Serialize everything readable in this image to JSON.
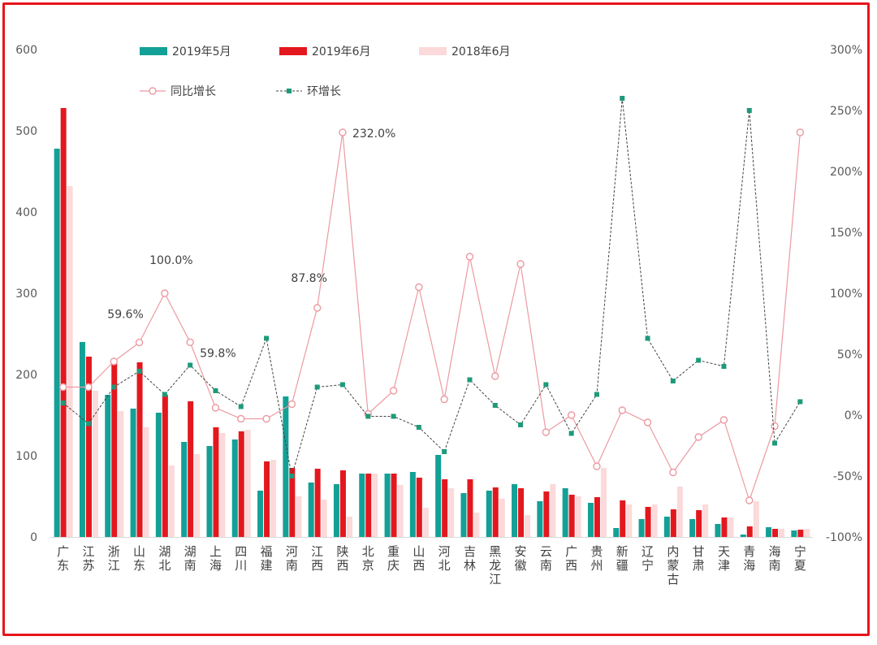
{
  "chart_data": {
    "type": "bar",
    "categories": [
      "广东",
      "江苏",
      "浙江",
      "山东",
      "湖北",
      "湖南",
      "上海",
      "四川",
      "福建",
      "河南",
      "江西",
      "陕西",
      "北京",
      "重庆",
      "山西",
      "河北",
      "吉林",
      "黑龙江",
      "安徽",
      "云南",
      "广西",
      "贵州",
      "新疆",
      "辽宁",
      "内蒙古",
      "甘肃",
      "天津",
      "青海",
      "海南",
      "宁夏"
    ],
    "y_left": {
      "ticks": [
        "0",
        "100",
        "200",
        "300",
        "400",
        "500",
        "600"
      ],
      "ylim": [
        0,
        600
      ]
    },
    "y_right": {
      "ticks": [
        "-100%",
        "-50%",
        "0%",
        "50%",
        "100%",
        "150%",
        "200%",
        "250%",
        "300%"
      ],
      "ylim": [
        -100,
        300
      ]
    },
    "series": [
      {
        "name": "2019年5月",
        "kind": "bar",
        "color": "#13a096",
        "values": [
          478,
          240,
          175,
          158,
          153,
          117,
          112,
          120,
          57,
          173,
          67,
          65,
          78,
          78,
          80,
          101,
          54,
          57,
          65,
          44,
          60,
          42,
          11,
          22,
          25,
          22,
          16,
          3,
          12,
          8
        ]
      },
      {
        "name": "2019年6月",
        "kind": "bar",
        "color": "#e3181e",
        "values": [
          528,
          222,
          215,
          215,
          175,
          167,
          135,
          130,
          93,
          85,
          84,
          82,
          78,
          78,
          73,
          71,
          71,
          61,
          60,
          56,
          52,
          49,
          45,
          37,
          34,
          33,
          24,
          13,
          10,
          9
        ]
      },
      {
        "name": "2018年6月",
        "kind": "bar",
        "color": "#fcd9da",
        "values": [
          432,
          180,
          155,
          135,
          88,
          102,
          128,
          132,
          95,
          50,
          46,
          25,
          78,
          64,
          36,
          60,
          30,
          47,
          27,
          65,
          50,
          85,
          40,
          40,
          62,
          40,
          24,
          44,
          10,
          10
        ]
      },
      {
        "name": "同比增长",
        "kind": "line",
        "axis": "right",
        "color": "#ec9aa2",
        "values": [
          23,
          23,
          44,
          59.6,
          100,
          59.8,
          6,
          -3,
          -3,
          9,
          88,
          232,
          1,
          20,
          105,
          13,
          130,
          32,
          124,
          -14,
          0,
          -42,
          4,
          -6,
          -47,
          -18,
          -4,
          -70,
          -9,
          232
        ]
      },
      {
        "name": "环增长",
        "kind": "line",
        "axis": "right",
        "color": "#444444",
        "dash": true,
        "values": [
          10,
          -7,
          23,
          36,
          17,
          41,
          20,
          7,
          63,
          -50,
          23,
          25,
          -1,
          -1,
          -10,
          -30,
          29,
          8,
          -8,
          25,
          -15,
          17,
          260,
          63,
          28,
          45,
          40,
          250,
          -23,
          11
        ]
      }
    ],
    "annotations": [
      {
        "text": "59.6%",
        "index": 3
      },
      {
        "text": "100.0%",
        "index": 4
      },
      {
        "text": "59.8%",
        "index": 5
      },
      {
        "text": "87.8%",
        "index": 10
      },
      {
        "text": "232.0%",
        "index": 11
      }
    ],
    "legend": "top",
    "grid": false
  }
}
